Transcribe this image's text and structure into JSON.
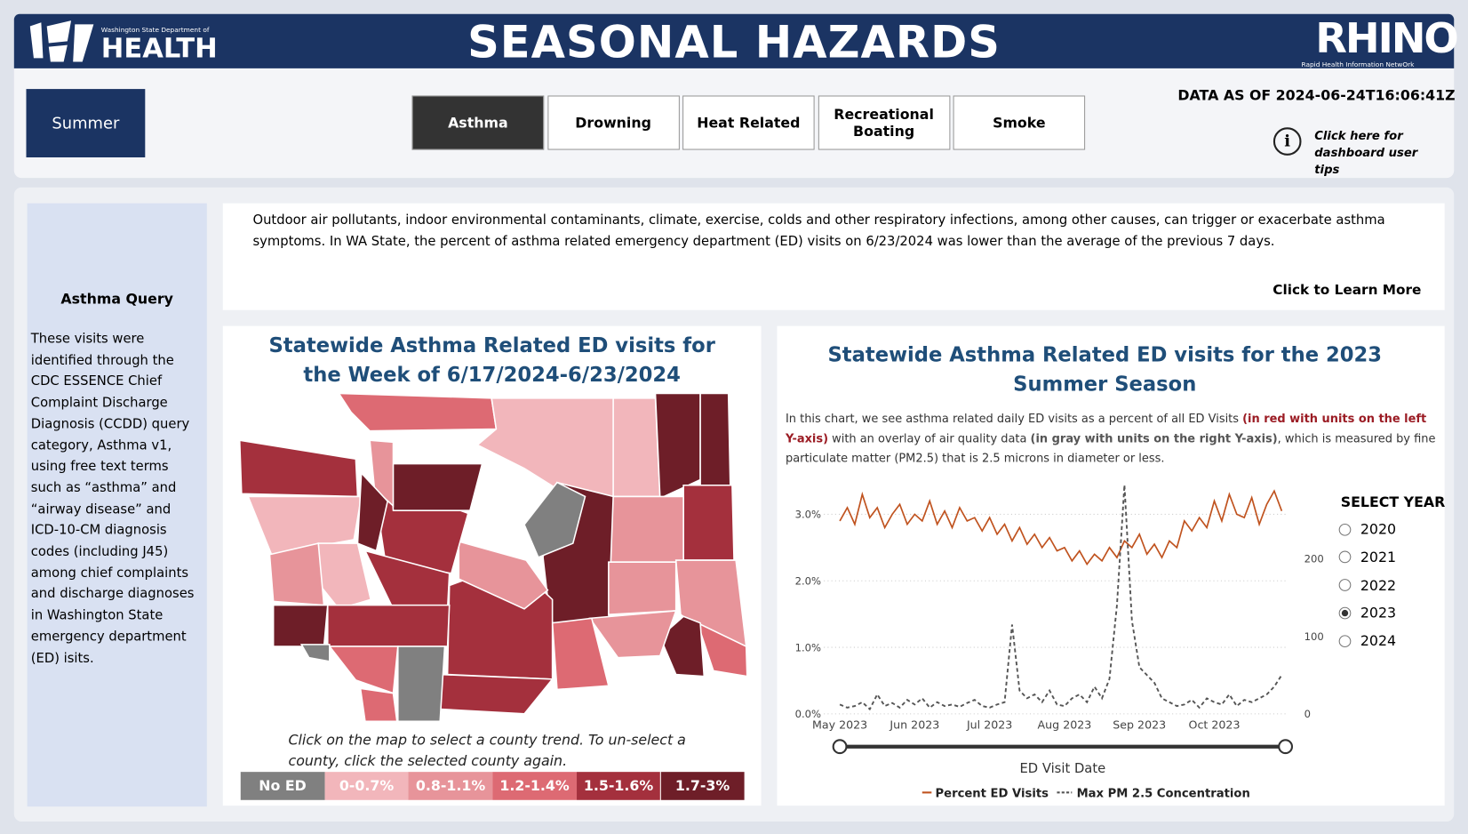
{
  "header": {
    "dept": "Washington State Department of",
    "logo_text": "HEALTH",
    "title": "SEASONAL HAZARDS",
    "rhino": "RHINO",
    "rhino_sub": "Rapid Health Information NetwOrk"
  },
  "season_button": "Summer",
  "tabs": [
    "Asthma",
    "Drowning",
    "Heat Related",
    "Recreational Boating",
    "Smoke"
  ],
  "active_tab": "Asthma",
  "data_as_of": "DATA AS OF 2024-06-24T16:06:41Z",
  "tips": "Click here for dashboard user tips",
  "intro": "Outdoor air pollutants, indoor environmental contaminants, climate, exercise, colds and other respiratory infections, among other causes, can trigger or exacerbate asthma symptoms. In WA State, the percent of asthma related emergency department (ED) visits on 6/23/2024 was lower than the average of the previous 7 days.",
  "learn_more": "Click to Learn More",
  "side": {
    "title": "Asthma Query",
    "body": "These visits were identified through the CDC ESSENCE Chief Complaint Discharge Diagnosis (CCDD) query category, Asthma v1, using free text terms such as “asthma” and “airway disease” and ICD-10-CM diagnosis codes (including J45) among chief complaints and discharge diagnoses in Washington State emergency department (ED) isits."
  },
  "map": {
    "title": "Statewide Asthma Related ED visits for the Week of 6/17/2024-6/23/2024",
    "note": "Click on the map to select a county trend. To un-select a county, click the selected county again.",
    "legend": [
      {
        "label": "No ED",
        "color": "#808080"
      },
      {
        "label": "0-0.7%",
        "color": "#f2b6bb"
      },
      {
        "label": "0.8-1.1%",
        "color": "#e7949a"
      },
      {
        "label": "1.2-1.4%",
        "color": "#dd6a73"
      },
      {
        "label": "1.5-1.6%",
        "color": "#a4303d"
      },
      {
        "label": "1.7-3%",
        "color": "#6e1e28"
      }
    ]
  },
  "year_selector": {
    "title": "SELECT YEAR",
    "options": [
      "2020",
      "2021",
      "2022",
      "2023",
      "2024"
    ],
    "selected": "2023"
  },
  "chart_data": {
    "type": "line",
    "title": "Statewide Asthma Related ED visits for the 2023 Summer Season",
    "description": [
      {
        "text": "In this chart, we see asthma related daily ED visits as a percent of all ED Visits "
      },
      {
        "text": "(in red with units on the left Y-axis)",
        "bold": true,
        "color": "#9b1c24"
      },
      {
        "text": " with an overlay of air quality data "
      },
      {
        "text": "(in gray with units on the right Y-axis)",
        "bold": true,
        "color": "#555555"
      },
      {
        "text": ", which is measured by fine particulate matter (PM2.5) that is 2.5 microns in diameter or less."
      }
    ],
    "xlabel": "ED Visit Date",
    "x": [
      "May 2023",
      null,
      null,
      null,
      null,
      null,
      null,
      null,
      null,
      null,
      "Jun 2023",
      null,
      null,
      null,
      null,
      null,
      null,
      null,
      null,
      null,
      "Jul 2023",
      null,
      null,
      null,
      null,
      null,
      null,
      null,
      null,
      null,
      "Aug 2023",
      null,
      null,
      null,
      null,
      null,
      null,
      null,
      null,
      null,
      "Sep 2023",
      null,
      null,
      null,
      null,
      null,
      null,
      null,
      null,
      null,
      "Oct 2023",
      null,
      null,
      null,
      null,
      null,
      null,
      null,
      null,
      null
    ],
    "ylim": [
      0,
      3.5
    ],
    "yticks": [
      {
        "value": 0,
        "label": "0.0%"
      },
      {
        "value": 1,
        "label": "1.0%"
      },
      {
        "value": 2,
        "label": "2.0%"
      },
      {
        "value": 3,
        "label": "3.0%"
      }
    ],
    "y2lim": [
      0,
      300
    ],
    "y2ticks": [
      0,
      100,
      200
    ],
    "grid": true,
    "series": [
      {
        "name": "Percent ED Visits",
        "color": "#c0531f",
        "values": [
          2.9,
          3.1,
          2.85,
          3.3,
          2.95,
          3.1,
          2.8,
          3.0,
          3.15,
          2.85,
          3.0,
          2.9,
          3.2,
          2.85,
          3.05,
          2.8,
          3.1,
          2.9,
          2.95,
          2.75,
          2.95,
          2.7,
          2.85,
          2.6,
          2.8,
          2.55,
          2.7,
          2.5,
          2.65,
          2.45,
          2.5,
          2.3,
          2.45,
          2.25,
          2.4,
          2.3,
          2.5,
          2.35,
          2.6,
          2.5,
          2.7,
          2.4,
          2.55,
          2.35,
          2.6,
          2.5,
          2.9,
          2.75,
          2.95,
          2.8,
          3.2,
          2.9,
          3.3,
          3.0,
          2.95,
          3.25,
          2.85,
          3.15,
          3.35,
          3.05
        ]
      },
      {
        "name": "Max PM 2.5 Concentration",
        "color": "#555555",
        "dashed": true,
        "axis": "y2",
        "values": [
          12,
          8,
          10,
          15,
          6,
          25,
          10,
          14,
          8,
          18,
          12,
          20,
          8,
          15,
          10,
          12,
          9,
          14,
          18,
          10,
          8,
          12,
          15,
          115,
          30,
          20,
          25,
          15,
          30,
          12,
          10,
          20,
          25,
          15,
          35,
          20,
          45,
          140,
          295,
          120,
          60,
          50,
          40,
          20,
          15,
          10,
          12,
          18,
          8,
          20,
          15,
          12,
          25,
          10,
          18,
          15,
          20,
          25,
          35,
          50
        ]
      }
    ]
  }
}
